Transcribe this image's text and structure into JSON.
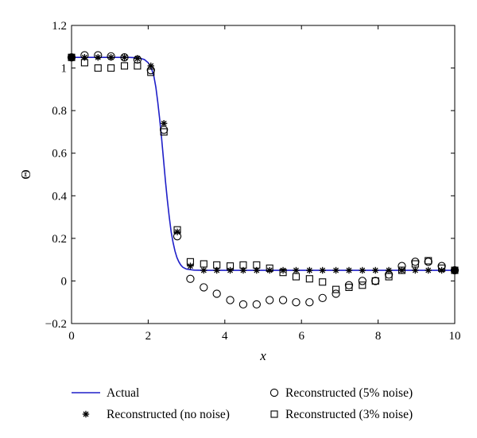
{
  "chart_data": {
    "type": "scatter",
    "title": "",
    "xlabel": "x",
    "ylabel": "Θ",
    "xlim": [
      0,
      10
    ],
    "ylim": [
      -0.2,
      1.2
    ],
    "xticks": [
      "0",
      "2",
      "4",
      "6",
      "8",
      "10"
    ],
    "yticks": [
      "−0.2",
      "0",
      "0.2",
      "0.4",
      "0.6",
      "0.8",
      "1",
      "1.2"
    ],
    "grid": false,
    "legend_position": "bottom",
    "colors": {
      "actual": "#1f1fc8",
      "markers": "#000000"
    },
    "series": [
      {
        "name": "Actual",
        "style": "line",
        "x": [
          0,
          0.5,
          1.0,
          1.5,
          1.7,
          1.8,
          1.9,
          2.0,
          2.05,
          2.1,
          2.15,
          2.2,
          2.25,
          2.3,
          2.35,
          2.4,
          2.45,
          2.5,
          2.55,
          2.6,
          2.65,
          2.7,
          2.75,
          2.8,
          2.85,
          2.9,
          2.95,
          3.0,
          3.1,
          3.2,
          3.4,
          4.0,
          5.0,
          6.0,
          7.0,
          8.0,
          9.0,
          10.0
        ],
        "y": [
          1.05,
          1.05,
          1.05,
          1.05,
          1.048,
          1.045,
          1.04,
          1.025,
          1.01,
          0.99,
          0.96,
          0.91,
          0.84,
          0.76,
          0.67,
          0.57,
          0.47,
          0.38,
          0.3,
          0.23,
          0.18,
          0.14,
          0.11,
          0.09,
          0.075,
          0.065,
          0.06,
          0.056,
          0.053,
          0.051,
          0.05,
          0.05,
          0.05,
          0.05,
          0.05,
          0.05,
          0.05,
          0.05
        ]
      },
      {
        "name": "Reconstructed (no noise)",
        "marker": "star",
        "x": [
          0,
          0.34,
          0.69,
          1.03,
          1.38,
          1.72,
          2.07,
          2.41,
          2.76,
          3.1,
          3.45,
          3.79,
          4.14,
          4.48,
          4.83,
          5.17,
          5.52,
          5.86,
          6.21,
          6.55,
          6.9,
          7.24,
          7.59,
          7.93,
          8.28,
          8.62,
          8.97,
          9.31,
          9.66,
          10.0
        ],
        "y": [
          1.05,
          1.05,
          1.05,
          1.05,
          1.05,
          1.045,
          1.01,
          0.74,
          0.23,
          0.07,
          0.05,
          0.05,
          0.05,
          0.05,
          0.05,
          0.05,
          0.05,
          0.05,
          0.05,
          0.05,
          0.05,
          0.05,
          0.05,
          0.05,
          0.05,
          0.05,
          0.05,
          0.05,
          0.05,
          0.05
        ]
      },
      {
        "name": "Reconstructed (5% noise)",
        "marker": "circle",
        "x": [
          0,
          0.34,
          0.69,
          1.03,
          1.38,
          1.72,
          2.07,
          2.41,
          2.76,
          3.1,
          3.45,
          3.79,
          4.14,
          4.48,
          4.83,
          5.17,
          5.52,
          5.86,
          6.21,
          6.55,
          6.9,
          7.24,
          7.59,
          7.93,
          8.28,
          8.62,
          8.97,
          9.31,
          9.66,
          10.0
        ],
        "y": [
          1.05,
          1.06,
          1.06,
          1.055,
          1.05,
          1.04,
          0.99,
          0.71,
          0.21,
          0.01,
          -0.03,
          -0.06,
          -0.09,
          -0.11,
          -0.11,
          -0.09,
          -0.09,
          -0.1,
          -0.1,
          -0.08,
          -0.06,
          -0.02,
          0.0,
          0.0,
          0.03,
          0.07,
          0.09,
          0.09,
          0.07,
          0.05
        ]
      },
      {
        "name": "Reconstructed (3% noise)",
        "marker": "square",
        "x": [
          0,
          0.34,
          0.69,
          1.03,
          1.38,
          1.72,
          2.07,
          2.41,
          2.76,
          3.1,
          3.45,
          3.79,
          4.14,
          4.48,
          4.83,
          5.17,
          5.52,
          5.86,
          6.21,
          6.55,
          6.9,
          7.24,
          7.59,
          7.93,
          8.28,
          8.62,
          8.97,
          9.31,
          9.66,
          10.0
        ],
        "y": [
          1.05,
          1.025,
          1.0,
          1.0,
          1.01,
          1.01,
          0.98,
          0.7,
          0.24,
          0.09,
          0.08,
          0.075,
          0.07,
          0.075,
          0.075,
          0.06,
          0.04,
          0.02,
          0.01,
          -0.005,
          -0.04,
          -0.03,
          -0.02,
          0.0,
          0.02,
          0.05,
          0.08,
          0.095,
          0.06,
          0.05
        ]
      }
    ],
    "legend": [
      {
        "label": "Actual",
        "marker": "line"
      },
      {
        "label": "Reconstructed (no noise)",
        "marker": "star"
      },
      {
        "label": "Reconstructed (5% noise)",
        "marker": "circle"
      },
      {
        "label": "Reconstructed (3% noise)",
        "marker": "square"
      }
    ]
  }
}
